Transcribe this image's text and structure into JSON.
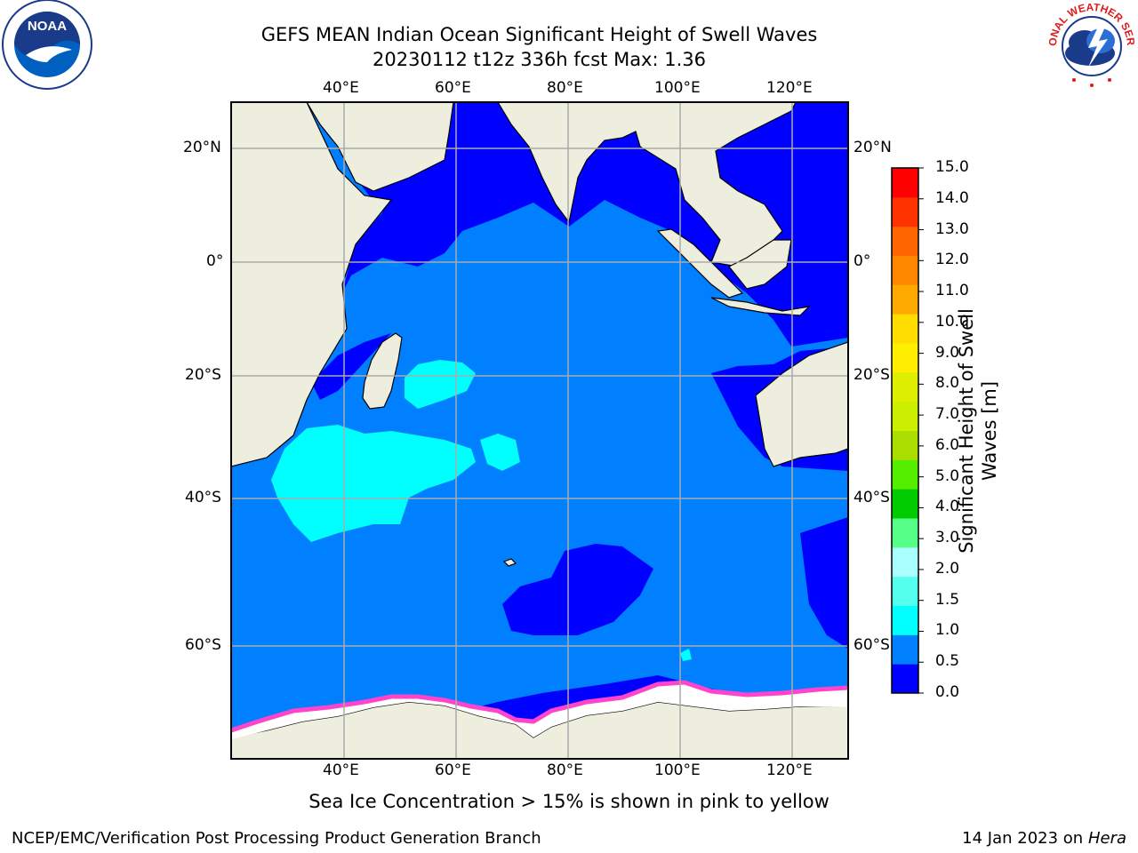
{
  "header": {
    "title_line1": "GEFS MEAN Indian Ocean Significant Height of Swell Waves",
    "title_line2": "20230112 t12z 336h fcst   Max: 1.36"
  },
  "logos": {
    "left_text": "NOAA",
    "right_text": "NATIONAL WEATHER SERVICE"
  },
  "map": {
    "lon_ticks": [
      "40°E",
      "60°E",
      "80°E",
      "100°E",
      "120°E"
    ],
    "lat_ticks": [
      "20°N",
      "0°",
      "20°S",
      "40°S",
      "60°S"
    ],
    "colors": {
      "land": "#EEEEDF",
      "ocean_0_05": "#0000FF",
      "ocean_05_1": "#0080FF",
      "ocean_1_15": "#00FFFF",
      "ice": "#FFFFFF",
      "ice_edge": "#FF44CC",
      "grid": "#AAAAAA"
    }
  },
  "colorbar": {
    "label": "Significant Height of Swell Waves [m]",
    "label_line1": "Significant Height of Swell",
    "label_line2": "Waves [m]",
    "tick_labels": [
      "15.0",
      "14.0",
      "13.0",
      "12.0",
      "11.0",
      "10.0",
      "9.0",
      "8.0",
      "7.0",
      "6.0",
      "5.0",
      "4.0",
      "3.0",
      "2.0",
      "1.5",
      "1.0",
      "0.5",
      "0.0"
    ],
    "bands_bottom_to_top": [
      "#0000FF",
      "#0080FF",
      "#00FFFF",
      "#55FFEE",
      "#AAFFFF",
      "#55FF88",
      "#00CC00",
      "#55EE00",
      "#AADD00",
      "#CCEE00",
      "#DDEE00",
      "#FFEE00",
      "#FFDD00",
      "#FFAA00",
      "#FF8800",
      "#FF6600",
      "#FF3300",
      "#FF0000"
    ]
  },
  "footer": {
    "caption": "Sea Ice Concentration > 15% is shown in pink to yellow",
    "left": "NCEP/EMC/Verification Post Processing Product Generation Branch",
    "right_prefix": "14 Jan 2023 on ",
    "right_italic": "Hera"
  }
}
